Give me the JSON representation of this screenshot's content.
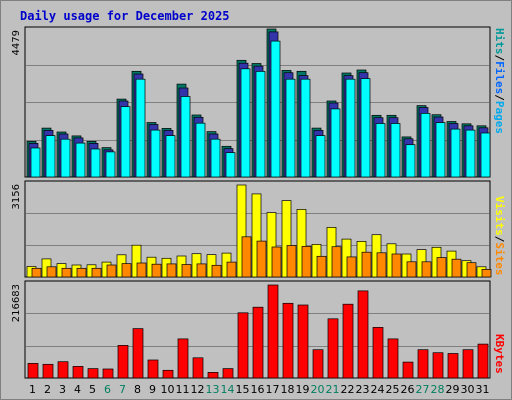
{
  "title": "Daily usage for December 2025",
  "colors": {
    "hits": "#00ffff",
    "hits_side": "#009999",
    "files": "#0066ff",
    "pages": "#00aaee",
    "hits_dark": "#007766",
    "files_dark": "#3333aa",
    "pages_dark": "#0077aa",
    "visits": "#ffff00",
    "sites": "#ff8800",
    "kbytes": "#ff0000",
    "weekday_label": "#000000",
    "weekend_label": "#007f5f"
  },
  "labels": {
    "hits_scale": "4479",
    "visits_scale": "3156",
    "kbytes_scale": "216683",
    "side_top": {
      "pages": "Pages",
      "files": "Files",
      "hits": "Hits",
      "sep": "/"
    },
    "side_mid": {
      "sites": "Sites",
      "visits": "Visits",
      "sep": "/"
    },
    "side_bot": {
      "kbytes": "KBytes"
    }
  },
  "chart_data": [
    {
      "type": "bar",
      "panel": "hits-files-pages",
      "categories": [
        "1",
        "2",
        "3",
        "4",
        "5",
        "6",
        "7",
        "8",
        "9",
        "10",
        "11",
        "12",
        "13",
        "14",
        "15",
        "16",
        "17",
        "18",
        "19",
        "20",
        "21",
        "22",
        "23",
        "24",
        "25",
        "26",
        "27",
        "28",
        "29",
        "30",
        "31"
      ],
      "weekend_days": [
        "6",
        "7",
        "13",
        "14",
        "20",
        "21",
        "27",
        "28"
      ],
      "ylim": [
        0,
        4479
      ],
      "series": [
        {
          "name": "Hits",
          "values": [
            1030,
            1440,
            1320,
            1200,
            1030,
            840,
            2330,
            3180,
            1610,
            1430,
            2790,
            1840,
            1330,
            880,
            3520,
            3420,
            4479,
            3210,
            3180,
            1440,
            2270,
            3130,
            3220,
            1830,
            1830,
            1170,
            2130,
            1850,
            1640,
            1570,
            1510
          ]
        },
        {
          "name": "Files",
          "values": [
            1000,
            1400,
            1290,
            1170,
            1000,
            800,
            2300,
            3130,
            1580,
            1400,
            2700,
            1800,
            1290,
            840,
            3460,
            3370,
            4420,
            3170,
            3080,
            1400,
            2240,
            3080,
            3170,
            1790,
            1790,
            1140,
            2100,
            1810,
            1610,
            1540,
            1480
          ]
        },
        {
          "name": "Pages",
          "values": [
            890,
            1270,
            1160,
            1040,
            860,
            770,
            2160,
            3000,
            1440,
            1270,
            2470,
            1650,
            1160,
            750,
            3320,
            3240,
            4170,
            3000,
            3000,
            1270,
            2090,
            3000,
            3020,
            1640,
            1640,
            990,
            1950,
            1670,
            1470,
            1440,
            1350
          ]
        }
      ]
    },
    {
      "type": "bar",
      "panel": "visits-sites",
      "categories": [
        "1",
        "2",
        "3",
        "4",
        "5",
        "6",
        "7",
        "8",
        "9",
        "10",
        "11",
        "12",
        "13",
        "14",
        "15",
        "16",
        "17",
        "18",
        "19",
        "20",
        "21",
        "22",
        "23",
        "24",
        "25",
        "26",
        "27",
        "28",
        "29",
        "30",
        "31"
      ],
      "ylim": [
        0,
        3156
      ],
      "series": [
        {
          "name": "Visits",
          "values": [
            360,
            620,
            460,
            410,
            420,
            510,
            760,
            1090,
            680,
            640,
            720,
            800,
            770,
            820,
            3156,
            2850,
            2210,
            2620,
            2320,
            1120,
            1700,
            1300,
            1220,
            1450,
            1140,
            790,
            940,
            1020,
            890,
            560,
            350
          ]
        },
        {
          "name": "Sites",
          "values": [
            300,
            350,
            300,
            300,
            300,
            410,
            460,
            480,
            440,
            450,
            430,
            450,
            400,
            510,
            1380,
            1230,
            1030,
            1080,
            1050,
            710,
            1040,
            690,
            850,
            830,
            790,
            520,
            520,
            670,
            610,
            490,
            260
          ]
        }
      ]
    },
    {
      "type": "bar",
      "panel": "kbytes",
      "categories": [
        "1",
        "2",
        "3",
        "4",
        "5",
        "6",
        "7",
        "8",
        "9",
        "10",
        "11",
        "12",
        "13",
        "14",
        "15",
        "16",
        "17",
        "18",
        "19",
        "20",
        "21",
        "22",
        "23",
        "24",
        "25",
        "26",
        "27",
        "28",
        "29",
        "30",
        "31"
      ],
      "ylim": [
        0,
        216683
      ],
      "series": [
        {
          "name": "KBytes",
          "values": [
            34000,
            32000,
            38000,
            27000,
            22000,
            21000,
            76000,
            115000,
            42000,
            18000,
            91000,
            47000,
            13000,
            22000,
            152000,
            165000,
            216683,
            174000,
            170000,
            66000,
            138000,
            172000,
            203000,
            118000,
            91000,
            37000,
            66000,
            59000,
            57000,
            66000,
            79000
          ]
        }
      ]
    }
  ]
}
